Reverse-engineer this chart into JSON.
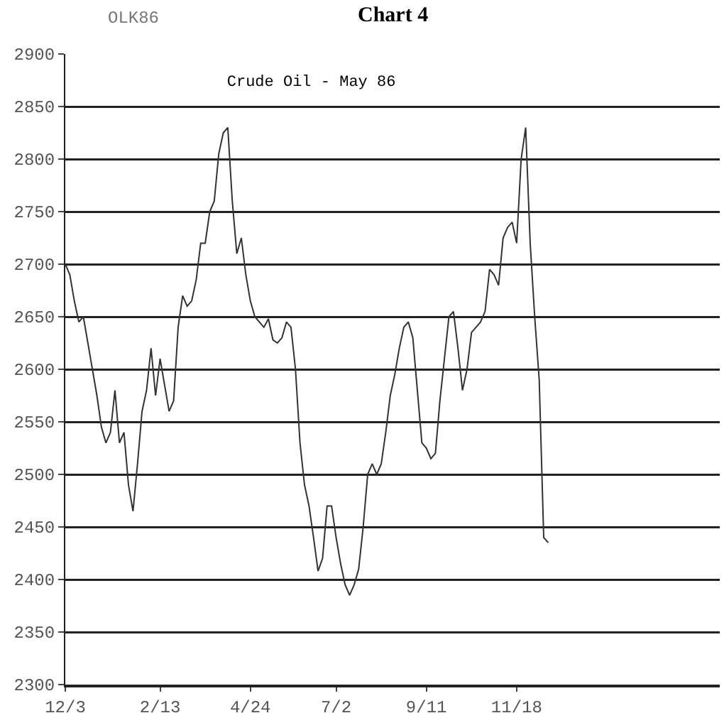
{
  "chart_data": {
    "type": "line",
    "title": "Crude Oil - May 86",
    "annotations": [
      "Chart 4",
      "OLK86"
    ],
    "categories": [
      "12/3",
      null,
      null,
      null,
      null,
      null,
      null,
      null,
      null,
      null,
      null,
      null,
      null,
      null,
      null,
      null,
      null,
      null,
      null,
      null,
      null,
      "2/13",
      null,
      null,
      null,
      null,
      null,
      null,
      null,
      null,
      null,
      null,
      null,
      null,
      null,
      null,
      null,
      null,
      null,
      null,
      null,
      "4/24",
      null,
      null,
      null,
      null,
      null,
      null,
      null,
      null,
      null,
      null,
      null,
      null,
      null,
      null,
      null,
      null,
      null,
      null,
      "7/2",
      null,
      null,
      null,
      null,
      null,
      null,
      null,
      null,
      null,
      null,
      null,
      null,
      null,
      null,
      null,
      null,
      null,
      null,
      null,
      "9/11",
      null,
      null,
      null,
      null,
      null,
      null,
      null,
      null,
      null,
      null,
      null,
      null,
      null,
      null,
      null,
      null,
      null,
      null,
      null,
      "11/18",
      null,
      null,
      null,
      null,
      null,
      null,
      null,
      null,
      null,
      null,
      null,
      null,
      null,
      null,
      null,
      null,
      null,
      null,
      null,
      null,
      null,
      null,
      null,
      null,
      null,
      null,
      null,
      null,
      null,
      null,
      null,
      null,
      null,
      null,
      null,
      null,
      null,
      null,
      null,
      null,
      null,
      null,
      null,
      null,
      null
    ],
    "series": [
      {
        "color": "#333333",
        "values": [
          2700,
          2690,
          2665,
          2645,
          2650,
          2625,
          2600,
          2575,
          2545,
          2530,
          2540,
          2580,
          2530,
          2540,
          2490,
          2465,
          2510,
          2560,
          2580,
          2620,
          2575,
          2610,
          2585,
          2560,
          2570,
          2640,
          2670,
          2660,
          2665,
          2685,
          2720,
          2720,
          2750,
          2760,
          2805,
          2825,
          2830,
          2760,
          2710,
          2725,
          2690,
          2665,
          2650,
          2645,
          2640,
          2648,
          2628,
          2625,
          2630,
          2645,
          2640,
          2600,
          2530,
          2490,
          2470,
          2440,
          2408,
          2420,
          2470,
          2470,
          2440,
          2415,
          2395,
          2385,
          2395,
          2410,
          2450,
          2500,
          2510,
          2500,
          2510,
          2540,
          2575,
          2595,
          2620,
          2640,
          2645,
          2630,
          2580,
          2530,
          2525,
          2515,
          2520,
          2570,
          2610,
          2650,
          2655,
          2620,
          2580,
          2600,
          2635,
          2640,
          2645,
          2655,
          2695,
          2690,
          2680,
          2725,
          2735,
          2740,
          2720,
          2800,
          2830,
          2720,
          2650,
          2590,
          2440,
          2435,
          null,
          null,
          null,
          null,
          null,
          null,
          null,
          null,
          null,
          null,
          null,
          null,
          null,
          null,
          null,
          null,
          null,
          null,
          null,
          null,
          null,
          null,
          null,
          null,
          null,
          null,
          null,
          null,
          null,
          null,
          null,
          null,
          null,
          null,
          null,
          null,
          null,
          null
        ]
      }
    ],
    "ylim": [
      2300,
      2900
    ],
    "yticks": [
      2300,
      2350,
      2400,
      2450,
      2500,
      2550,
      2600,
      2650,
      2700,
      2750,
      2800,
      2850,
      2900
    ],
    "grid": "y"
  }
}
